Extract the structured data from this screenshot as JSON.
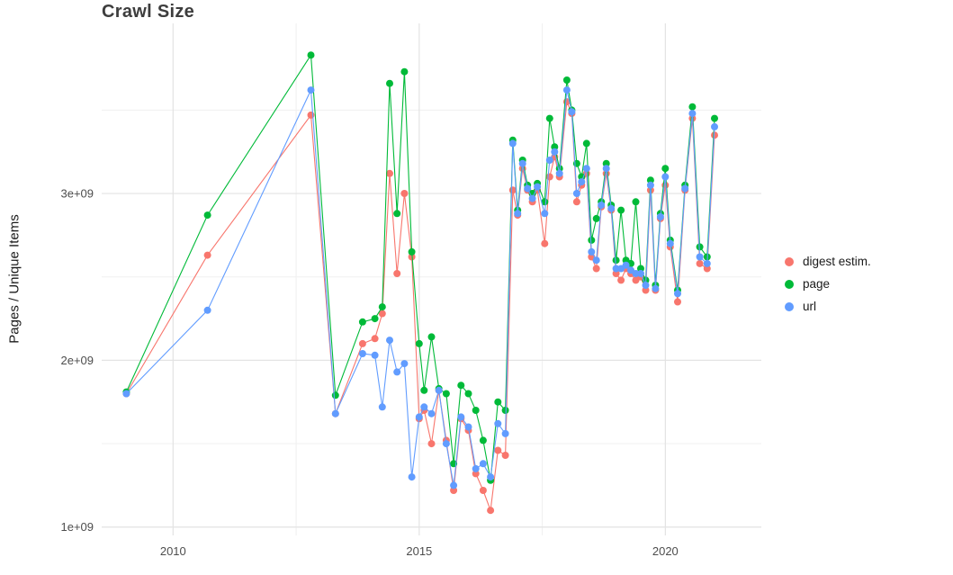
{
  "chart_data": {
    "type": "line",
    "markers": true,
    "title": "Crawl Size",
    "xlabel": "",
    "ylabel": "Pages / Unique Items",
    "legend_position": "right",
    "grid": true,
    "xlim": [
      2008.55,
      2021.95
    ],
    "ylim": [
      950000000.0,
      4020000000.0
    ],
    "x_ticks": [
      {
        "value": 2010,
        "label": "2010"
      },
      {
        "value": 2015,
        "label": "2015"
      },
      {
        "value": 2020,
        "label": "2020"
      }
    ],
    "x_minor_gridlines": [
      2012.5,
      2017.5
    ],
    "y_ticks": [
      {
        "value": 1000000000.0,
        "label": "1e+09"
      },
      {
        "value": 2000000000.0,
        "label": "2e+09"
      },
      {
        "value": 3000000000.0,
        "label": "3e+09"
      }
    ],
    "y_minor_gridlines": [
      1500000000.0,
      2500000000.0,
      3500000000.0
    ],
    "x": [
      2009.05,
      2010.7,
      2012.8,
      2013.3,
      2013.85,
      2014.1,
      2014.25,
      2014.4,
      2014.55,
      2014.7,
      2014.85,
      2015.0,
      2015.1,
      2015.25,
      2015.4,
      2015.55,
      2015.7,
      2015.85,
      2016.0,
      2016.15,
      2016.3,
      2016.45,
      2016.6,
      2016.75,
      2016.9,
      2017.0,
      2017.1,
      2017.2,
      2017.3,
      2017.4,
      2017.55,
      2017.65,
      2017.75,
      2017.85,
      2018.0,
      2018.1,
      2018.2,
      2018.3,
      2018.4,
      2018.5,
      2018.6,
      2018.7,
      2018.8,
      2018.9,
      2019.0,
      2019.1,
      2019.2,
      2019.3,
      2019.4,
      2019.5,
      2019.6,
      2019.7,
      2019.8,
      2019.9,
      2020.0,
      2020.1,
      2020.25,
      2020.4,
      2020.55,
      2020.7,
      2020.85,
      2021.0
    ],
    "series": [
      {
        "name": "digest estim.",
        "color": "#F8766D",
        "y": [
          1800000000.0,
          2630000000.0,
          3470000000.0,
          1680000000.0,
          2100000000.0,
          2130000000.0,
          2280000000.0,
          3120000000.0,
          2520000000.0,
          3000000000.0,
          2620000000.0,
          1650000000.0,
          1700000000.0,
          1500000000.0,
          1820000000.0,
          1520000000.0,
          1220000000.0,
          1650000000.0,
          1580000000.0,
          1320000000.0,
          1220000000.0,
          1100000000.0,
          1460000000.0,
          1430000000.0,
          3020000000.0,
          2870000000.0,
          3150000000.0,
          3020000000.0,
          2950000000.0,
          3020000000.0,
          2700000000.0,
          3100000000.0,
          3220000000.0,
          3100000000.0,
          3550000000.0,
          3480000000.0,
          2950000000.0,
          3050000000.0,
          3120000000.0,
          2620000000.0,
          2550000000.0,
          2920000000.0,
          3120000000.0,
          2900000000.0,
          2520000000.0,
          2480000000.0,
          2550000000.0,
          2520000000.0,
          2480000000.0,
          2500000000.0,
          2420000000.0,
          3020000000.0,
          2420000000.0,
          2850000000.0,
          3050000000.0,
          2680000000.0,
          2350000000.0,
          3020000000.0,
          3450000000.0,
          2580000000.0,
          2550000000.0,
          3350000000.0
        ]
      },
      {
        "name": "page",
        "color": "#00BA38",
        "y": [
          1810000000.0,
          2870000000.0,
          3830000000.0,
          1790000000.0,
          2230000000.0,
          2250000000.0,
          2320000000.0,
          3660000000.0,
          2880000000.0,
          3730000000.0,
          2650000000.0,
          2100000000.0,
          1820000000.0,
          2140000000.0,
          1830000000.0,
          1800000000.0,
          1380000000.0,
          1850000000.0,
          1800000000.0,
          1700000000.0,
          1520000000.0,
          1280000000.0,
          1750000000.0,
          1700000000.0,
          3320000000.0,
          2900000000.0,
          3200000000.0,
          3050000000.0,
          3000000000.0,
          3060000000.0,
          2950000000.0,
          3450000000.0,
          3280000000.0,
          3150000000.0,
          3680000000.0,
          3500000000.0,
          3180000000.0,
          3100000000.0,
          3300000000.0,
          2720000000.0,
          2850000000.0,
          2950000000.0,
          3180000000.0,
          2930000000.0,
          2600000000.0,
          2900000000.0,
          2600000000.0,
          2580000000.0,
          2950000000.0,
          2550000000.0,
          2480000000.0,
          3080000000.0,
          2450000000.0,
          2880000000.0,
          3150000000.0,
          2720000000.0,
          2420000000.0,
          3050000000.0,
          3520000000.0,
          2680000000.0,
          2620000000.0,
          3450000000.0
        ]
      },
      {
        "name": "url",
        "color": "#619CFF",
        "y": [
          1800000000.0,
          2300000000.0,
          3620000000.0,
          1680000000.0,
          2040000000.0,
          2030000000.0,
          1720000000.0,
          2120000000.0,
          1930000000.0,
          1980000000.0,
          1300000000.0,
          1660000000.0,
          1720000000.0,
          1680000000.0,
          1820000000.0,
          1500000000.0,
          1250000000.0,
          1660000000.0,
          1600000000.0,
          1350000000.0,
          1380000000.0,
          1300000000.0,
          1620000000.0,
          1560000000.0,
          3300000000.0,
          2880000000.0,
          3180000000.0,
          3030000000.0,
          2970000000.0,
          3040000000.0,
          2880000000.0,
          3200000000.0,
          3250000000.0,
          3120000000.0,
          3620000000.0,
          3490000000.0,
          3000000000.0,
          3070000000.0,
          3150000000.0,
          2650000000.0,
          2600000000.0,
          2930000000.0,
          3150000000.0,
          2910000000.0,
          2550000000.0,
          2550000000.0,
          2570000000.0,
          2540000000.0,
          2520000000.0,
          2520000000.0,
          2450000000.0,
          3050000000.0,
          2430000000.0,
          2860000000.0,
          3100000000.0,
          2700000000.0,
          2400000000.0,
          3030000000.0,
          3480000000.0,
          2620000000.0,
          2580000000.0,
          3400000000.0
        ]
      }
    ],
    "colors": {
      "major_gridline": "#e3e3e3",
      "minor_gridline": "#f0f0f0",
      "tick_label": "#4d4d4d"
    }
  }
}
